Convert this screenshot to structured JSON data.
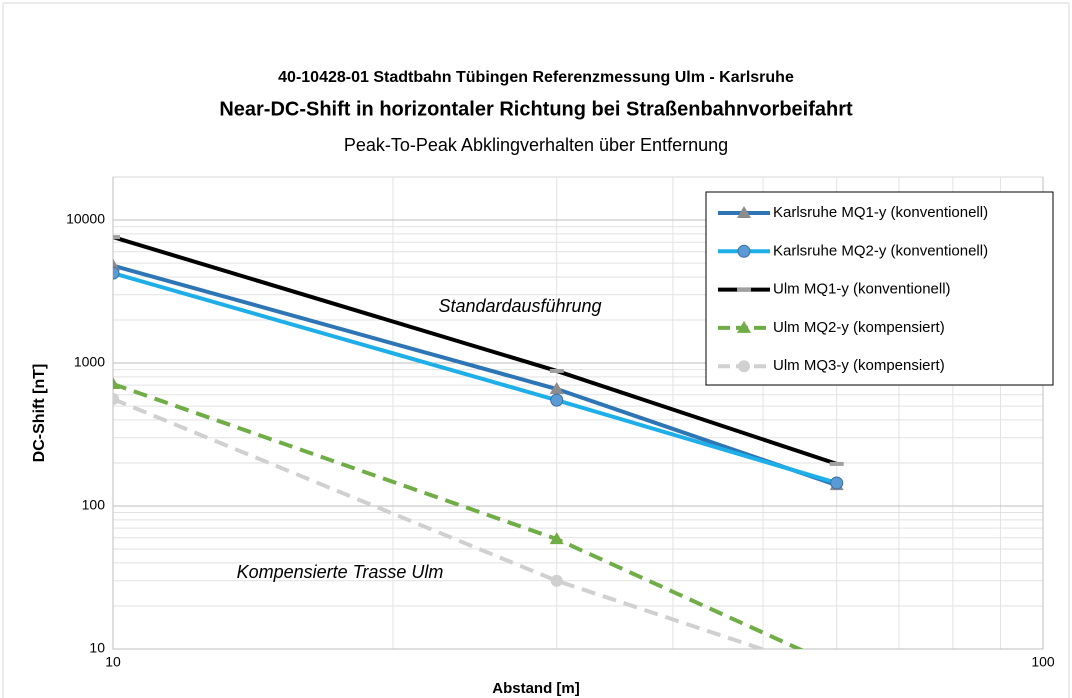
{
  "chart_data": {
    "type": "line",
    "title": "40-10428-01 Stadtbahn Tübingen Referenzmessung Ulm - Karlsruhe",
    "subtitle": "Near-DC-Shift in horizontaler Richtung bei Straßenbahnvorbeifahrt",
    "subtitle2": "Peak-To-Peak Abklingverhalten über Entfernung",
    "x_label": "Abstand [m]",
    "y_label": "DC-Shift [nT]",
    "annotations": [
      "Standardausführung",
      "Kompensierte Trasse Ulm"
    ],
    "x": [
      10,
      30,
      60
    ],
    "xlim": [
      10,
      100
    ],
    "xticks": [
      10,
      100
    ],
    "ylim": [
      10,
      20000
    ],
    "yticks": [
      10,
      100,
      1000,
      10000
    ],
    "xlog": true,
    "ylog": true,
    "grid": true,
    "minor_grid": true,
    "legend": "upper right",
    "series": [
      {
        "name": "Karlsruhe MQ1-y (konventionell)",
        "color": "#2e75b6",
        "marker": "triangle",
        "marker_color": "#8c8c8c",
        "dash": false,
        "values": [
          4800,
          658,
          140
        ]
      },
      {
        "name": "Karlsruhe MQ2-y (konventionell)",
        "color": "#1eaee8",
        "marker": "circle",
        "marker_color": "#5b9bd5",
        "dash": false,
        "values": [
          4250,
          550,
          145
        ]
      },
      {
        "name": "Ulm MQ1-y (konventionell)",
        "color": "#000000",
        "marker": "dash",
        "marker_color": "#a0a0a0",
        "dash": false,
        "values": [
          7600,
          880,
          197
        ]
      },
      {
        "name": "Ulm MQ2-y (kompensiert)",
        "color": "#70ad47",
        "marker": "triangle",
        "marker_color": "#70ad47",
        "dash": true,
        "values": [
          713,
          58.7,
          7.6
        ]
      },
      {
        "name": "Ulm MQ3-y (kompensiert)",
        "color": "#d0d0d0",
        "marker": "circle",
        "marker_color": "#d0d0d0",
        "dash": true,
        "values": [
          560,
          30,
          6.7
        ]
      }
    ]
  }
}
